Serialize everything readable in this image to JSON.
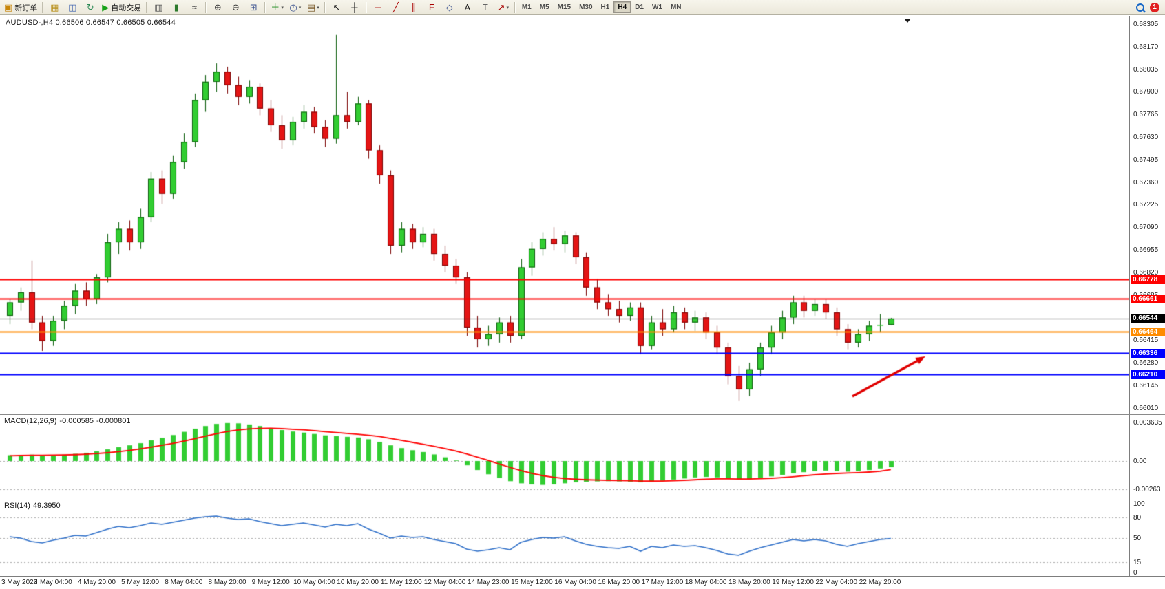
{
  "toolbar": {
    "new_order_label": "新订单",
    "autotrading_label": "自动交易",
    "groups": [
      {
        "items": [
          {
            "icon": "new-order-icon",
            "label": "新订单"
          }
        ]
      },
      {
        "items": [
          {
            "icon": "charts-icon"
          },
          {
            "icon": "navigator-icon"
          },
          {
            "icon": "refresh-icon"
          },
          {
            "icon": "autotrading-icon",
            "label": "自动交易"
          }
        ]
      },
      {
        "items": [
          {
            "icon": "bar-chart-icon"
          },
          {
            "icon": "candlestick-chart-icon"
          },
          {
            "icon": "line-chart-icon"
          }
        ]
      },
      {
        "items": [
          {
            "icon": "zoom-in-icon"
          },
          {
            "icon": "zoom-out-icon"
          },
          {
            "icon": "tile-windows-icon"
          }
        ]
      },
      {
        "items": [
          {
            "icon": "indicators-icon",
            "caret": true
          },
          {
            "icon": "periods-icon",
            "caret": true
          },
          {
            "icon": "templates-icon",
            "caret": true
          }
        ]
      },
      {
        "items": [
          {
            "icon": "cursor-icon"
          },
          {
            "icon": "crosshair-icon"
          }
        ]
      },
      {
        "items": [
          {
            "icon": "horizontal-line-icon"
          },
          {
            "icon": "trendline-icon"
          },
          {
            "icon": "channel-icon"
          },
          {
            "icon": "fibonacci-icon"
          },
          {
            "icon": "shapes-icon"
          },
          {
            "icon": "text-icon"
          },
          {
            "icon": "text-label-icon"
          },
          {
            "icon": "arrows-icon",
            "caret": true
          }
        ]
      }
    ],
    "timeframes": [
      "M1",
      "M5",
      "M15",
      "M30",
      "H1",
      "H4",
      "D1",
      "W1",
      "MN"
    ],
    "active_timeframe": "H4",
    "notification_count": "1"
  },
  "chart": {
    "symbol_line": "AUDUSD-,H4  0.66506 0.66547 0.66505 0.66544",
    "price_axis_ticks": [
      "0.68305",
      "0.68170",
      "0.68035",
      "0.67900",
      "0.67765",
      "0.67630",
      "0.67495",
      "0.67360",
      "0.67225",
      "0.67090",
      "0.66955",
      "0.66820",
      "0.66685",
      "0.66550",
      "0.66415",
      "0.66280",
      "0.66145",
      "0.66010"
    ],
    "time_axis_labels": [
      "3 May 2023",
      "4 May 04:00",
      "4 May 20:00",
      "5 May 12:00",
      "8 May 04:00",
      "8 May 20:00",
      "9 May 12:00",
      "10 May 04:00",
      "10 May 20:00",
      "11 May 12:00",
      "12 May 04:00",
      "14 May 23:00",
      "15 May 12:00",
      "16 May 04:00",
      "16 May 20:00",
      "17 May 12:00",
      "18 May 04:00",
      "18 May 20:00",
      "19 May 12:00",
      "22 May 04:00",
      "22 May 20:00"
    ],
    "hlines": [
      {
        "price": 0.66778,
        "label": "0.66778",
        "color": "#FF0000",
        "width": 2
      },
      {
        "price": 0.66661,
        "label": "0.66661",
        "color": "#FF0000",
        "width": 2
      },
      {
        "price": 0.66544,
        "label": "0.66544",
        "color": "#3A3A3A",
        "width": 1,
        "tag_color": "#000000"
      },
      {
        "price": 0.66464,
        "label": "0.66464",
        "color": "#FF8C00",
        "width": 2
      },
      {
        "price": 0.66336,
        "label": "0.66336",
        "color": "#0000FF",
        "width": 2
      },
      {
        "price": 0.6621,
        "label": "0.66210",
        "color": "#0000FF",
        "width": 2
      }
    ],
    "annotations": [
      {
        "type": "arrow",
        "direction": "up-right",
        "color": "#E00000"
      }
    ]
  },
  "colors": {
    "bull": "#32CD32",
    "bull_border": "#0A5D0A",
    "bear": "#E41515",
    "bear_border": "#7A0000",
    "macd_hist": "#32CD32",
    "macd_signal": "#FF0000",
    "rsi_line": "#2E6FC9",
    "arrow": "#E00000",
    "grid_dotted": "#AAAAAA"
  },
  "chart_data": {
    "type": "candlestick",
    "symbol": "AUDUSD-",
    "timeframe": "H4",
    "current_ohlc": {
      "open": "0.66506",
      "high": "0.66547",
      "low": "0.66505",
      "close": "0.66544"
    },
    "price_range": {
      "top": 0.68305,
      "bottom": 0.6601,
      "tick_step": 0.00135
    },
    "ohlc": [
      [
        0.6656,
        0.6666,
        0.6651,
        0.6664
      ],
      [
        0.6664,
        0.6673,
        0.6659,
        0.667
      ],
      [
        0.667,
        0.6689,
        0.6648,
        0.6652
      ],
      [
        0.6652,
        0.6656,
        0.6635,
        0.6641
      ],
      [
        0.6641,
        0.6656,
        0.6638,
        0.6653
      ],
      [
        0.6653,
        0.6665,
        0.6648,
        0.6662
      ],
      [
        0.6662,
        0.6675,
        0.6657,
        0.6671
      ],
      [
        0.6671,
        0.6676,
        0.6662,
        0.6666
      ],
      [
        0.6666,
        0.6681,
        0.6663,
        0.6679
      ],
      [
        0.6679,
        0.6705,
        0.6676,
        0.67
      ],
      [
        0.67,
        0.6712,
        0.6693,
        0.6708
      ],
      [
        0.6708,
        0.6713,
        0.6695,
        0.67
      ],
      [
        0.67,
        0.672,
        0.6696,
        0.6715
      ],
      [
        0.6715,
        0.6742,
        0.6712,
        0.6738
      ],
      [
        0.6738,
        0.6743,
        0.6723,
        0.6729
      ],
      [
        0.6729,
        0.6752,
        0.6726,
        0.6748
      ],
      [
        0.6748,
        0.6765,
        0.6744,
        0.676
      ],
      [
        0.676,
        0.6789,
        0.6757,
        0.6785
      ],
      [
        0.6785,
        0.68,
        0.6778,
        0.6796
      ],
      [
        0.6796,
        0.6807,
        0.679,
        0.6802
      ],
      [
        0.6802,
        0.6805,
        0.6789,
        0.6794
      ],
      [
        0.6794,
        0.6799,
        0.6782,
        0.6787
      ],
      [
        0.6787,
        0.6797,
        0.6783,
        0.6793
      ],
      [
        0.6793,
        0.6795,
        0.6776,
        0.678
      ],
      [
        0.678,
        0.6785,
        0.6766,
        0.677
      ],
      [
        0.677,
        0.6776,
        0.6756,
        0.6761
      ],
      [
        0.6761,
        0.6775,
        0.6758,
        0.6772
      ],
      [
        0.6772,
        0.6782,
        0.6768,
        0.6778
      ],
      [
        0.6778,
        0.6781,
        0.6765,
        0.6769
      ],
      [
        0.6769,
        0.6773,
        0.6757,
        0.6762
      ],
      [
        0.6762,
        0.6824,
        0.6759,
        0.6776
      ],
      [
        0.6776,
        0.679,
        0.6768,
        0.6772
      ],
      [
        0.6772,
        0.6787,
        0.677,
        0.6783
      ],
      [
        0.6783,
        0.6785,
        0.675,
        0.6755
      ],
      [
        0.6755,
        0.6758,
        0.6735,
        0.674
      ],
      [
        0.674,
        0.6743,
        0.6693,
        0.6698
      ],
      [
        0.6698,
        0.6712,
        0.6694,
        0.6708
      ],
      [
        0.6708,
        0.6711,
        0.6696,
        0.67
      ],
      [
        0.67,
        0.6709,
        0.6697,
        0.6705
      ],
      [
        0.6705,
        0.6708,
        0.6689,
        0.6693
      ],
      [
        0.6693,
        0.6698,
        0.6682,
        0.6686
      ],
      [
        0.6686,
        0.669,
        0.6675,
        0.6679
      ],
      [
        0.6679,
        0.6682,
        0.6644,
        0.6649
      ],
      [
        0.6649,
        0.6656,
        0.6637,
        0.6642
      ],
      [
        0.6642,
        0.665,
        0.6638,
        0.6645
      ],
      [
        0.6645,
        0.6655,
        0.664,
        0.6652
      ],
      [
        0.6652,
        0.6656,
        0.664,
        0.6644
      ],
      [
        0.6644,
        0.669,
        0.6642,
        0.6685
      ],
      [
        0.6685,
        0.67,
        0.668,
        0.6696
      ],
      [
        0.6696,
        0.6706,
        0.6692,
        0.6702
      ],
      [
        0.6702,
        0.6709,
        0.6695,
        0.6699
      ],
      [
        0.6699,
        0.6707,
        0.6694,
        0.6704
      ],
      [
        0.6704,
        0.6706,
        0.6687,
        0.6691
      ],
      [
        0.6691,
        0.6694,
        0.6668,
        0.6673
      ],
      [
        0.6673,
        0.6678,
        0.666,
        0.6664
      ],
      [
        0.6664,
        0.6669,
        0.6656,
        0.666
      ],
      [
        0.666,
        0.6665,
        0.6652,
        0.6656
      ],
      [
        0.6656,
        0.6664,
        0.6653,
        0.6661
      ],
      [
        0.6661,
        0.6664,
        0.6633,
        0.6638
      ],
      [
        0.6638,
        0.6656,
        0.6636,
        0.6652
      ],
      [
        0.6652,
        0.666,
        0.6644,
        0.6648
      ],
      [
        0.6648,
        0.6662,
        0.6646,
        0.6658
      ],
      [
        0.6658,
        0.6661,
        0.6648,
        0.6652
      ],
      [
        0.6652,
        0.6659,
        0.6647,
        0.6655
      ],
      [
        0.6655,
        0.6658,
        0.6642,
        0.6646
      ],
      [
        0.6646,
        0.665,
        0.6633,
        0.6637
      ],
      [
        0.6637,
        0.664,
        0.6615,
        0.662
      ],
      [
        0.662,
        0.6626,
        0.6605,
        0.6612
      ],
      [
        0.6612,
        0.6628,
        0.6608,
        0.6624
      ],
      [
        0.6624,
        0.664,
        0.662,
        0.6637
      ],
      [
        0.6637,
        0.665,
        0.6633,
        0.6646
      ],
      [
        0.6646,
        0.6659,
        0.6642,
        0.6655
      ],
      [
        0.6655,
        0.6668,
        0.6651,
        0.6664
      ],
      [
        0.6664,
        0.6668,
        0.6655,
        0.6659
      ],
      [
        0.6659,
        0.6666,
        0.6656,
        0.6663
      ],
      [
        0.6663,
        0.6666,
        0.6654,
        0.6658
      ],
      [
        0.6658,
        0.6661,
        0.6644,
        0.6648
      ],
      [
        0.6648,
        0.6651,
        0.6636,
        0.664
      ],
      [
        0.664,
        0.6648,
        0.6637,
        0.6645
      ],
      [
        0.6645,
        0.6653,
        0.6641,
        0.665
      ],
      [
        0.665,
        0.6657,
        0.6646,
        0.66506
      ],
      [
        0.66506,
        0.66547,
        0.66505,
        0.66544
      ]
    ],
    "macd": {
      "label": "MACD(12,26,9)",
      "main_value": "-0.000585",
      "signal_value": "-0.000801",
      "axis_ticks": [
        "0.003635",
        "0.00",
        "-0.00263"
      ],
      "axis_tick_values": [
        0.003635,
        0,
        -0.00263
      ],
      "hist": [
        0.00055,
        0.00058,
        0.0006,
        0.00058,
        0.00056,
        0.0006,
        0.00068,
        0.00078,
        0.00092,
        0.0011,
        0.0013,
        0.00148,
        0.00168,
        0.00195,
        0.00218,
        0.00245,
        0.00275,
        0.00305,
        0.0033,
        0.0035,
        0.00358,
        0.00355,
        0.00345,
        0.0033,
        0.00312,
        0.00292,
        0.00278,
        0.00268,
        0.00255,
        0.00242,
        0.00235,
        0.00228,
        0.00222,
        0.00205,
        0.0018,
        0.00148,
        0.00122,
        0.00102,
        0.00085,
        0.00062,
        0.00035,
        5e-05,
        -0.0004,
        -0.00085,
        -0.00125,
        -0.0016,
        -0.0019,
        -0.0021,
        -0.0022,
        -0.00225,
        -0.0022,
        -0.0021,
        -0.002,
        -0.00195,
        -0.00192,
        -0.0019,
        -0.00192,
        -0.00195,
        -0.002,
        -0.00195,
        -0.00185,
        -0.00175,
        -0.00165,
        -0.00155,
        -0.0015,
        -0.00155,
        -0.00165,
        -0.00175,
        -0.0017,
        -0.0016,
        -0.00145,
        -0.0013,
        -0.00115,
        -0.00105,
        -0.00095,
        -0.0009,
        -0.00095,
        -0.001,
        -0.00095,
        -0.00085,
        -0.0007,
        -0.000585
      ],
      "signal": [
        0.0005,
        0.00052,
        0.00054,
        0.00055,
        0.00056,
        0.00057,
        0.0006,
        0.00064,
        0.0007,
        0.00078,
        0.00088,
        0.001,
        0.00114,
        0.0013,
        0.00148,
        0.00167,
        0.00188,
        0.00211,
        0.00235,
        0.00258,
        0.00278,
        0.00293,
        0.00303,
        0.00308,
        0.00309,
        0.00306,
        0.003,
        0.00294,
        0.00286,
        0.00277,
        0.00269,
        0.00261,
        0.00253,
        0.00243,
        0.00231,
        0.00214,
        0.00196,
        0.00177,
        0.00159,
        0.00139,
        0.00118,
        0.00095,
        0.00068,
        0.00037,
        5e-05,
        -0.00028,
        -0.0006,
        -0.0009,
        -0.00116,
        -0.00138,
        -0.00154,
        -0.00165,
        -0.00172,
        -0.00177,
        -0.0018,
        -0.00182,
        -0.00184,
        -0.00186,
        -0.00189,
        -0.0019,
        -0.00189,
        -0.00186,
        -0.00182,
        -0.00177,
        -0.00171,
        -0.00168,
        -0.00168,
        -0.00169,
        -0.00169,
        -0.00167,
        -0.00163,
        -0.00156,
        -0.00148,
        -0.00139,
        -0.0013,
        -0.00122,
        -0.00117,
        -0.00113,
        -0.00109,
        -0.00104,
        -0.00097,
        -0.000801
      ]
    },
    "rsi": {
      "label": "RSI(14)",
      "value": "49.3950",
      "axis_ticks": [
        "100",
        "80",
        "50",
        "15",
        "0"
      ],
      "axis_tick_values": [
        100,
        80,
        50,
        15,
        0
      ],
      "levels": [
        80,
        50,
        15
      ],
      "values": [
        52,
        50,
        45,
        43,
        47,
        50,
        54,
        53,
        58,
        63,
        67,
        65,
        68,
        72,
        70,
        73,
        76,
        79,
        81,
        82,
        79,
        77,
        78,
        74,
        71,
        68,
        70,
        72,
        69,
        66,
        70,
        68,
        71,
        63,
        57,
        50,
        53,
        51,
        52,
        48,
        45,
        42,
        34,
        31,
        33,
        36,
        33,
        44,
        48,
        51,
        50,
        52,
        46,
        41,
        38,
        36,
        35,
        38,
        31,
        38,
        36,
        40,
        38,
        39,
        36,
        32,
        27,
        25,
        31,
        36,
        40,
        44,
        48,
        46,
        48,
        46,
        41,
        38,
        42,
        45,
        48,
        49.4
      ]
    }
  }
}
